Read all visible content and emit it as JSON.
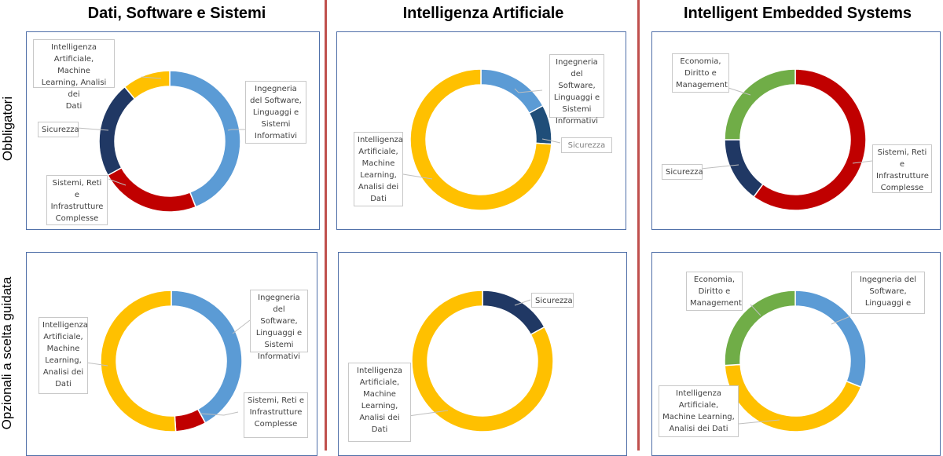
{
  "columns": [
    {
      "title": "Dati, Software e Sistemi"
    },
    {
      "title": "Intelligenza Artificiale"
    },
    {
      "title": "Intelligent Embedded Systems"
    }
  ],
  "rows": [
    {
      "label": "Obbligatori"
    },
    {
      "label": "Opzionali a scelta guidata"
    }
  ],
  "colors": {
    "software": "#5b9bd5",
    "ai": "#ffc000",
    "security": "#203864",
    "security_alt": "#1f4e79",
    "systems": "#c00000",
    "economy": "#70ad47",
    "divider": "#c0504d",
    "panel_border": "#4f6fa8"
  },
  "chart_data": [
    {
      "type": "pie",
      "variant": "donut",
      "title": "Dati, Software e Sistemi — Obbligatori",
      "categories": [
        "Ingegneria del Software, Linguaggi e Sistemi Informativi",
        "Sistemi, Reti e Infrastrutture Complesse",
        "Sicurezza",
        "Intelligenza Artificiale, Machine Learning, Analisi dei Dati"
      ],
      "values": [
        44,
        23,
        22,
        11
      ],
      "colors": [
        "#5b9bd5",
        "#c00000",
        "#203864",
        "#ffc000"
      ],
      "labels": [
        "Ingegneria del Software, Linguaggi e Sistemi Informativi",
        "Sistemi, Reti e Infrastrutture Complesse",
        "Sicurezza",
        "Intelligenza Artificiale, Machine Learning, Analisi dei Dati"
      ]
    },
    {
      "type": "pie",
      "variant": "donut",
      "title": "Intelligenza Artificiale — Obbligatori",
      "categories": [
        "Ingegneria del Software, Linguaggi e Sistemi Informativi",
        "Sicurezza",
        "Intelligenza Artificiale, Machine Learning, Analisi dei Dati"
      ],
      "values": [
        17,
        9,
        74
      ],
      "colors": [
        "#5b9bd5",
        "#1f4e79",
        "#ffc000"
      ],
      "labels": [
        "Ingegneria del Software, Linguaggi e Sistemi Informativi",
        "Sicurezza",
        "Intelligenza Artificiale, Machine Learning, Analisi dei Dati"
      ]
    },
    {
      "type": "pie",
      "variant": "donut",
      "title": "Intelligent Embedded Systems — Obbligatori",
      "categories": [
        "Sistemi, Reti e Infrastrutture Complesse",
        "Sicurezza",
        "Economia, Diritto e Management"
      ],
      "values": [
        60,
        15,
        25
      ],
      "colors": [
        "#c00000",
        "#203864",
        "#70ad47"
      ],
      "labels": [
        "Sistemi, Reti e Infrastrutture Complesse",
        "Sicurezza",
        "Economia, Diritto e Management"
      ]
    },
    {
      "type": "pie",
      "variant": "donut",
      "title": "Dati, Software e Sistemi — Opzionali a scelta guidata",
      "categories": [
        "Ingegneria del Software, Linguaggi e Sistemi Informativi",
        "Sistemi, Reti e Infrastrutture Complesse",
        "Intelligenza Artificiale, Machine Learning, Analisi dei Dati"
      ],
      "values": [
        42,
        7,
        51
      ],
      "colors": [
        "#5b9bd5",
        "#c00000",
        "#ffc000"
      ],
      "labels": [
        "Ingegneria del Software, Linguaggi e Sistemi Informativi",
        "Sistemi, Reti e Infrastrutture Complesse",
        "Intelligenza Artificiale, Machine Learning, Analisi dei Dati"
      ]
    },
    {
      "type": "pie",
      "variant": "donut",
      "title": "Intelligenza Artificiale — Opzionali a scelta guidata",
      "categories": [
        "Sicurezza",
        "Intelligenza Artificiale, Machine Learning, Analisi dei Dati"
      ],
      "values": [
        17,
        83
      ],
      "colors": [
        "#203864",
        "#ffc000"
      ],
      "labels": [
        "Sicurezza",
        "Intelligenza Artificiale, Machine Learning, Analisi dei Dati"
      ]
    },
    {
      "type": "pie",
      "variant": "donut",
      "title": "Intelligent Embedded Systems — Opzionali a scelta guidata",
      "categories": [
        "Ingegneria del Software, Linguaggi e ...",
        "Intelligenza Artificiale, Machine Learning, Analisi dei Dati",
        "Economia, Diritto e Management"
      ],
      "values": [
        31,
        43,
        26
      ],
      "colors": [
        "#5b9bd5",
        "#ffc000",
        "#70ad47"
      ],
      "labels": [
        "Ingegneria del Software, Linguaggi e",
        "Intelligenza Artificiale, Machine Learning, Analisi dei Dati",
        "Economia, Diritto e Management"
      ]
    }
  ],
  "callouts": {
    "p1": {
      "software": "Ingegneria\ndel Software,\nLinguaggi e\nSistemi\nInformativi",
      "ai": "Intelligenza\nArtificiale, Machine\nLearning, Analisi dei\nDati",
      "security": "Sicurezza",
      "systems": "Sistemi, Reti e\nInfrastrutture\nComplesse"
    },
    "p2": {
      "software": "Ingegneria\ndel Software,\nLinguaggi e\nSistemi\nInformativi",
      "security": "Sicurezza",
      "ai": "Intelligenza\nArtificiale,\nMachine\nLearning,\nAnalisi dei\nDati"
    },
    "p3": {
      "economy": "Economia,\nDiritto e\nManagement",
      "security": "Sicurezza",
      "systems": "Sistemi, Reti e\nInfrastrutture\nComplesse"
    },
    "p4": {
      "software": "Ingegneria\ndel Software,\nLinguaggi e\nSistemi\nInformativi",
      "ai": "Intelligenza\nArtificiale,\nMachine\nLearning,\nAnalisi dei\nDati",
      "systems": "Sistemi, Reti e\nInfrastrutture\nComplesse"
    },
    "p5": {
      "security": "Sicurezza",
      "ai": "Intelligenza\nArtificiale,\nMachine\nLearning,\nAnalisi dei\nDati"
    },
    "p6": {
      "economy": "Economia,\nDiritto e\nManagement",
      "software": "Ingegneria del\nSoftware,\nLinguaggi e",
      "ai": "Intelligenza\nArtificiale,\nMachine Learning,\nAnalisi dei Dati"
    }
  }
}
